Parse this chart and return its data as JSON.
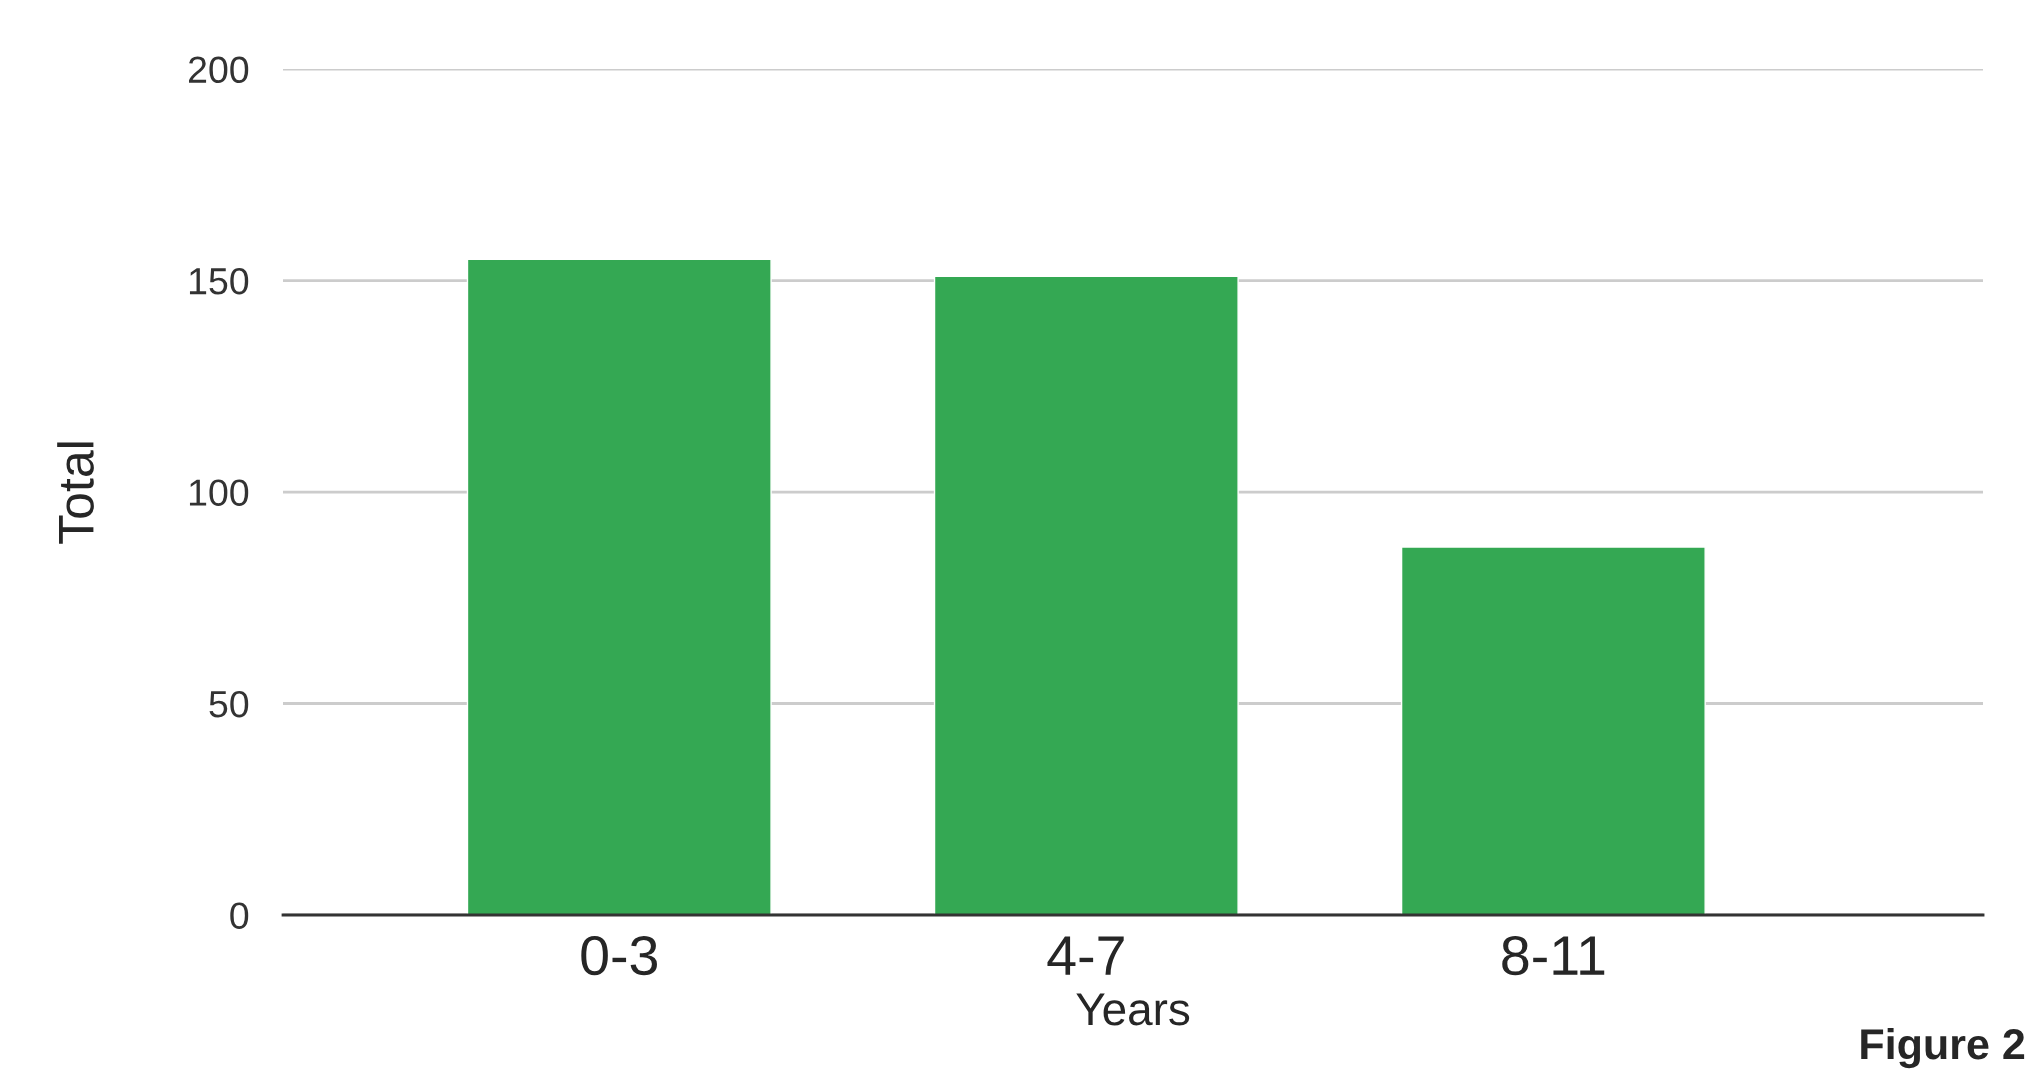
{
  "chart_data": {
    "type": "bar",
    "xlabel": "Years",
    "ylabel": "Total",
    "categories": [
      "0-3",
      "4-7",
      "8-11"
    ],
    "values": [
      155,
      151,
      87
    ],
    "color": "#34a853",
    "ylim": [
      0,
      200
    ],
    "yticks": [
      0,
      50,
      100,
      150,
      200
    ],
    "grid": "y",
    "legend": false,
    "annotations": [
      "Figure 2"
    ]
  }
}
